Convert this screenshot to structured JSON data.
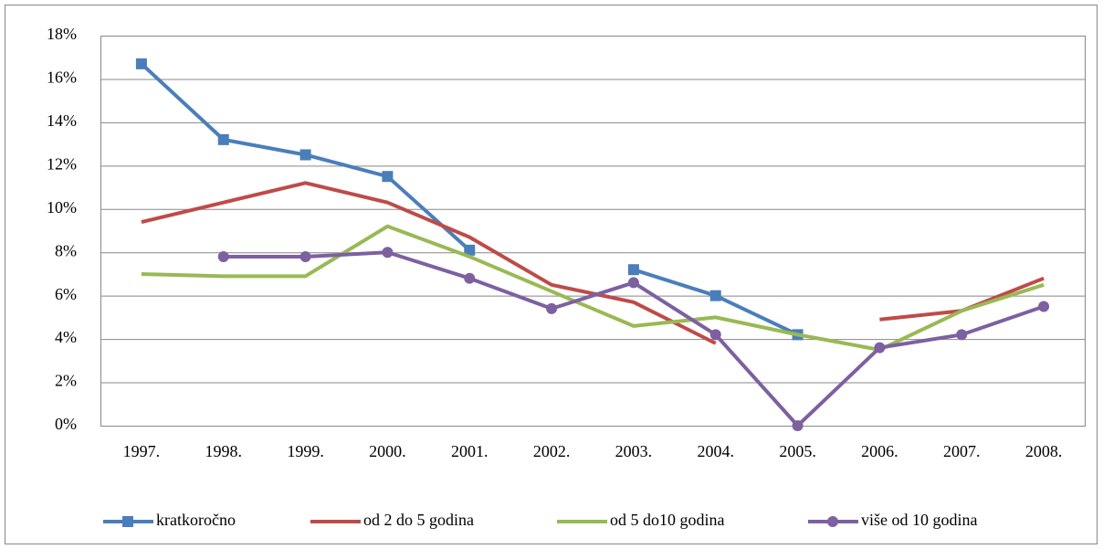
{
  "chart_data": {
    "type": "line",
    "categories": [
      "1997.",
      "1998.",
      "1999.",
      "2000.",
      "2001.",
      "2002.",
      "2003.",
      "2004.",
      "2005.",
      "2006.",
      "2007.",
      "2008."
    ],
    "series": [
      {
        "name": "kratkoročno",
        "color": "#4a7ebb",
        "marker": "square",
        "values": [
          16.7,
          13.2,
          12.5,
          11.5,
          8.1,
          null,
          7.2,
          6.0,
          4.2,
          null,
          null,
          null
        ]
      },
      {
        "name": "od 2 do 5 godina",
        "color": "#be4b48",
        "marker": "none",
        "values": [
          9.4,
          10.3,
          11.2,
          10.3,
          8.7,
          6.5,
          5.7,
          3.8,
          null,
          4.9,
          5.3,
          6.8
        ]
      },
      {
        "name": "od 5 do10 godina",
        "color": "#98b954",
        "marker": "none",
        "values": [
          7.0,
          6.9,
          6.9,
          9.2,
          7.8,
          6.2,
          4.6,
          5.0,
          4.2,
          3.5,
          5.3,
          6.5
        ]
      },
      {
        "name": "više od 10 godina",
        "color": "#7d60a0",
        "marker": "circle",
        "values": [
          null,
          7.8,
          7.8,
          8.0,
          6.8,
          5.4,
          6.6,
          4.2,
          0,
          3.6,
          4.2,
          5.5
        ]
      }
    ],
    "ylim": [
      0,
      18
    ],
    "yticks": [
      {
        "value": 0,
        "label": "0%"
      },
      {
        "value": 2,
        "label": "2%"
      },
      {
        "value": 4,
        "label": "4%"
      },
      {
        "value": 6,
        "label": "6%"
      },
      {
        "value": 8,
        "label": "8%"
      },
      {
        "value": 10,
        "label": "10%"
      },
      {
        "value": 12,
        "label": "12%"
      },
      {
        "value": 14,
        "label": "14%"
      },
      {
        "value": 16,
        "label": "16%"
      },
      {
        "value": 18,
        "label": "18%"
      }
    ],
    "grid": true,
    "legend": "bottom"
  }
}
